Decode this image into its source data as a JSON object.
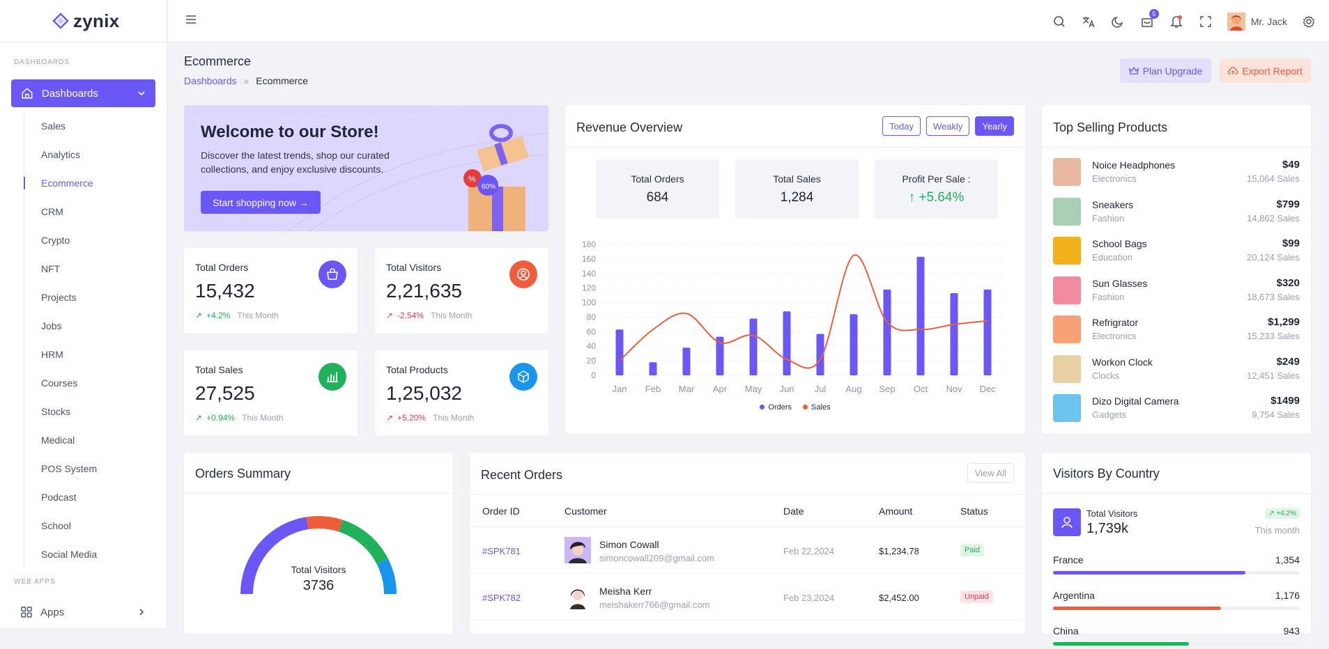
{
  "brand": {
    "name": "zynix",
    "accent": "#6b56f6"
  },
  "sidebar": {
    "section1": "DASHBOARDS",
    "dashboards_label": "Dashboards",
    "items": [
      "Sales",
      "Analytics",
      "Ecommerce",
      "CRM",
      "Crypto",
      "NFT",
      "Projects",
      "Jobs",
      "HRM",
      "Courses",
      "Stocks",
      "Medical",
      "POS System",
      "Podcast",
      "School",
      "Social Media"
    ],
    "active": "Ecommerce",
    "section2": "WEB APPS",
    "apps_label": "Apps"
  },
  "topbar": {
    "cart_badge": "5",
    "user_name": "Mr. Jack"
  },
  "header": {
    "title": "Ecommerce",
    "breadcrumb": [
      "Dashboards",
      "Ecommerce"
    ],
    "plan_upgrade": "Plan Upgrade",
    "export_report": "Export Report"
  },
  "welcome": {
    "title": "Welcome to our Store!",
    "text": "Discover the latest trends, shop our curated collections, and enjoy exclusive discounts.",
    "button": "Start shopping now →",
    "gift_tag": "60%"
  },
  "stats": [
    {
      "label": "Total Orders",
      "value": "15,432",
      "change": "+4.2%",
      "direction": "up",
      "period": "This Month",
      "color": "#6b56f6",
      "icon": "shopping-bag-icon"
    },
    {
      "label": "Total Visitors",
      "value": "2,21,635",
      "change": "-2.54%",
      "direction": "down",
      "period": "This Month",
      "color": "#f05d3b",
      "icon": "user-circle-icon"
    },
    {
      "label": "Total Sales",
      "value": "27,525",
      "change": "+0.94%",
      "direction": "up",
      "period": "This Month",
      "color": "#1fb25a",
      "icon": "bar-chart-icon"
    },
    {
      "label": "Total Products",
      "value": "1,25,032",
      "change": "+5.20%",
      "direction": "down",
      "period": "This Month",
      "color": "#1896ee",
      "icon": "cube-icon"
    }
  ],
  "revenue": {
    "title": "Revenue Overview",
    "filters": [
      "Today",
      "Weakly",
      "Yearly"
    ],
    "active_filter": "Yearly",
    "summary": [
      {
        "label": "Total Orders",
        "value": "684"
      },
      {
        "label": "Total Sales",
        "value": "1,284"
      },
      {
        "label": "Profit Per Sale :",
        "value": "↑ +5.64%"
      }
    ]
  },
  "chart_data": {
    "type": "bar",
    "categories": [
      "Jan",
      "Feb",
      "Mar",
      "Apr",
      "May",
      "Jun",
      "Jul",
      "Aug",
      "Sep",
      "Oct",
      "Nov",
      "Dec"
    ],
    "series": [
      {
        "name": "Orders",
        "type": "bar",
        "color": "#6b56f6",
        "values": [
          63,
          18,
          38,
          53,
          78,
          88,
          57,
          84,
          118,
          163,
          113,
          118
        ]
      },
      {
        "name": "Sales",
        "type": "line",
        "color": "#f05d3b",
        "values": [
          20,
          63,
          85,
          45,
          55,
          22,
          22,
          165,
          73,
          63,
          70,
          75
        ]
      }
    ],
    "yticks": [
      0,
      20,
      40,
      60,
      80,
      100,
      120,
      140,
      160,
      180
    ],
    "ylim": [
      0,
      180
    ],
    "legend": "bottom",
    "grid": true
  },
  "top_selling": {
    "title": "Top Selling Products",
    "items": [
      {
        "name": "Noice Headphones",
        "category": "Electronics",
        "price": "$49",
        "sales": "15,064 Sales",
        "color": "#e7b7a0"
      },
      {
        "name": "Sneakers",
        "category": "Fashion",
        "price": "$799",
        "sales": "14,862 Sales",
        "color": "#a9cfb4"
      },
      {
        "name": "School Bags",
        "category": "Education",
        "price": "$99",
        "sales": "20,124 Sales",
        "color": "#f3b21b"
      },
      {
        "name": "Sun Glasses",
        "category": "Fashion",
        "price": "$320",
        "sales": "18,673 Sales",
        "color": "#f28ba0"
      },
      {
        "name": "Refrigrator",
        "category": "Electronics",
        "price": "$1,299",
        "sales": "15,233 Sales",
        "color": "#f7a274"
      },
      {
        "name": "Workon Clock",
        "category": "Clocks",
        "price": "$249",
        "sales": "12,451 Sales",
        "color": "#e9cfa4"
      },
      {
        "name": "Dizo Digital Camera",
        "category": "Gadgets",
        "price": "$1499",
        "sales": "9,754 Sales",
        "color": "#6cc3ee"
      }
    ]
  },
  "orders_summary": {
    "title": "Orders Summary",
    "label": "Total Visitors",
    "value": "3736",
    "segments": [
      {
        "color": "#6b56f6",
        "frac": 0.45
      },
      {
        "color": "#f05d3b",
        "frac": 0.15
      },
      {
        "color": "#1fb25a",
        "frac": 0.25
      },
      {
        "color": "#1896ee",
        "frac": 0.15
      }
    ]
  },
  "recent_orders": {
    "title": "Recent Orders",
    "view_all": "View All",
    "headers": [
      "Order ID",
      "Customer",
      "Date",
      "Amount",
      "Status"
    ],
    "rows": [
      {
        "id": "#SPK781",
        "name": "Simon Cowall",
        "email": "simoncowall209@gmail.com",
        "date": "Feb 22,2024",
        "amount": "$1,234.78",
        "status": "Paid"
      },
      {
        "id": "#SPK782",
        "name": "Meisha Kerr",
        "email": "meishakerr766@gmail.com",
        "date": "Feb 23,2024",
        "amount": "$2,452.00",
        "status": "Unpaid"
      }
    ]
  },
  "visitors_by_country": {
    "title": "Visitors By Country",
    "total_label": "Total Visitors",
    "total_value": "1,739k",
    "change": "↗ +4.2%",
    "period": "This month",
    "countries": [
      {
        "name": "France",
        "value": "1,354",
        "fill": 0.78,
        "color": "#6b56f6"
      },
      {
        "name": "Argentina",
        "value": "1,176",
        "fill": 0.68,
        "color": "#f05d3b"
      },
      {
        "name": "China",
        "value": "943",
        "fill": 0.55,
        "color": "#1fb25a"
      }
    ]
  }
}
